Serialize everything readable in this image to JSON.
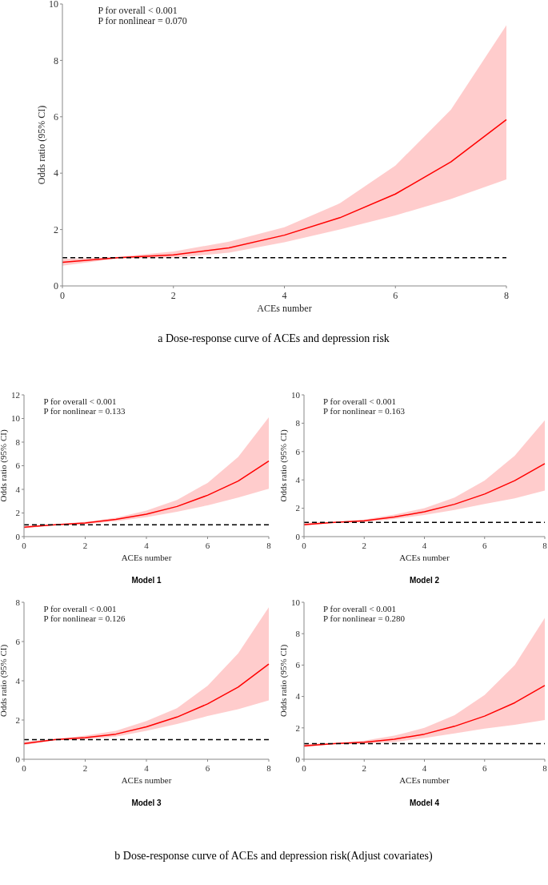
{
  "chart_data": [
    {
      "type": "line",
      "xlabel": "ACEs number",
      "ylabel": "Odds ratio (95% CI)",
      "x": [
        0,
        1,
        2,
        3,
        4,
        5,
        6,
        7,
        8
      ],
      "xlim": [
        0,
        8
      ],
      "xticks": [
        0,
        2,
        4,
        6,
        8
      ],
      "ylim": [
        0,
        10
      ],
      "yticks": [
        0,
        2,
        4,
        6,
        8,
        10
      ],
      "grid": false,
      "series": [
        {
          "color": "#ff0000",
          "values": [
            0.84,
            1.0,
            1.1,
            1.35,
            1.8,
            2.42,
            3.26,
            4.4,
            5.9
          ],
          "lower": [
            0.72,
            0.97,
            1.0,
            1.18,
            1.55,
            2.0,
            2.5,
            3.08,
            3.78
          ],
          "upper": [
            0.95,
            1.03,
            1.22,
            1.57,
            2.08,
            2.93,
            4.27,
            6.25,
            9.25
          ]
        }
      ],
      "ref_lines": [
        {
          "axis": "y",
          "value": 1,
          "color": "#000000",
          "line_style": "dashed"
        }
      ],
      "annotations": [
        "P for overall < 0.001",
        "P for nonlinear = 0.070",
        "a Dose-response curve of ACEs and depression risk"
      ]
    },
    {
      "type": "line",
      "title": "Model 1",
      "xlabel": "ACEs number",
      "ylabel": "Odds ratio (95% CI)",
      "x": [
        0,
        1,
        2,
        3,
        4,
        5,
        6,
        7,
        8
      ],
      "xlim": [
        0,
        8
      ],
      "xticks": [
        0,
        2,
        4,
        6,
        8
      ],
      "ylim": [
        0,
        12
      ],
      "yticks": [
        0,
        2,
        4,
        6,
        8,
        10,
        12
      ],
      "grid": false,
      "series": [
        {
          "color": "#ff0000",
          "values": [
            0.8,
            1.0,
            1.15,
            1.45,
            1.9,
            2.55,
            3.5,
            4.7,
            6.4
          ],
          "lower": [
            0.7,
            0.97,
            1.05,
            1.3,
            1.65,
            2.1,
            2.65,
            3.3,
            4.05
          ],
          "upper": [
            0.92,
            1.03,
            1.25,
            1.6,
            2.2,
            3.1,
            4.55,
            6.75,
            10.1
          ]
        }
      ],
      "ref_lines": [
        {
          "axis": "y",
          "value": 1,
          "color": "#000000",
          "line_style": "dashed"
        }
      ],
      "annotations": [
        "P for overall < 0.001",
        "P for nonlinear = 0.133",
        "b Dose-response curve of ACEs and depression risk(Adjust covariates)"
      ]
    },
    {
      "type": "line",
      "title": "Model 2",
      "xlabel": "ACEs number",
      "ylabel": "Odds ratio (95% CI)",
      "x": [
        0,
        1,
        2,
        3,
        4,
        5,
        6,
        7,
        8
      ],
      "xlim": [
        0,
        8
      ],
      "xticks": [
        0,
        2,
        4,
        6,
        8
      ],
      "ylim": [
        0,
        10
      ],
      "yticks": [
        0,
        2,
        4,
        6,
        8,
        10
      ],
      "grid": false,
      "series": [
        {
          "color": "#ff0000",
          "values": [
            0.85,
            1.0,
            1.12,
            1.38,
            1.75,
            2.28,
            3.0,
            3.95,
            5.15
          ],
          "lower": [
            0.75,
            0.97,
            1.03,
            1.25,
            1.52,
            1.88,
            2.3,
            2.7,
            3.25
          ],
          "upper": [
            0.97,
            1.03,
            1.2,
            1.55,
            2.0,
            2.75,
            3.95,
            5.7,
            8.2
          ]
        }
      ],
      "ref_lines": [
        {
          "axis": "y",
          "value": 1,
          "color": "#000000",
          "line_style": "dashed"
        }
      ],
      "annotations": [
        "P for overall < 0.001",
        "P for nonlinear = 0.163"
      ]
    },
    {
      "type": "line",
      "title": "Model 3",
      "xlabel": "ACEs number",
      "ylabel": "Odds ratio (95% CI)",
      "x": [
        0,
        1,
        2,
        3,
        4,
        5,
        6,
        7,
        8
      ],
      "xlim": [
        0,
        8
      ],
      "xticks": [
        0,
        2,
        4,
        6,
        8
      ],
      "ylim": [
        0,
        8
      ],
      "yticks": [
        0,
        2,
        4,
        6,
        8
      ],
      "grid": false,
      "series": [
        {
          "color": "#ff0000",
          "values": [
            0.8,
            1.0,
            1.1,
            1.28,
            1.65,
            2.15,
            2.82,
            3.68,
            4.85
          ],
          "lower": [
            0.72,
            0.97,
            1.02,
            1.15,
            1.45,
            1.8,
            2.2,
            2.55,
            3.0
          ],
          "upper": [
            0.9,
            1.03,
            1.2,
            1.45,
            1.95,
            2.6,
            3.75,
            5.4,
            7.75
          ]
        }
      ],
      "ref_lines": [
        {
          "axis": "y",
          "value": 1,
          "color": "#000000",
          "line_style": "dashed"
        }
      ],
      "annotations": [
        "P for overall < 0.001",
        "P for nonlinear = 0.126"
      ]
    },
    {
      "type": "line",
      "title": "Model 4",
      "xlabel": "ACEs number",
      "ylabel": "Odds ratio (95% CI)",
      "x": [
        0,
        1,
        2,
        3,
        4,
        5,
        6,
        7,
        8
      ],
      "xlim": [
        0,
        8
      ],
      "xticks": [
        0,
        2,
        4,
        6,
        8
      ],
      "ylim": [
        0,
        10
      ],
      "yticks": [
        0,
        2,
        4,
        6,
        8,
        10
      ],
      "grid": false,
      "series": [
        {
          "color": "#ff0000",
          "values": [
            0.85,
            1.0,
            1.08,
            1.28,
            1.6,
            2.1,
            2.75,
            3.6,
            4.7
          ],
          "lower": [
            0.75,
            0.97,
            1.0,
            1.1,
            1.35,
            1.65,
            1.95,
            2.2,
            2.5
          ],
          "upper": [
            0.97,
            1.03,
            1.18,
            1.5,
            2.0,
            2.8,
            4.1,
            6.0,
            9.0
          ]
        }
      ],
      "ref_lines": [
        {
          "axis": "y",
          "value": 1,
          "color": "#000000",
          "line_style": "dashed"
        }
      ],
      "annotations": [
        "P for overall < 0.001",
        "P for nonlinear = 0.280"
      ]
    }
  ]
}
